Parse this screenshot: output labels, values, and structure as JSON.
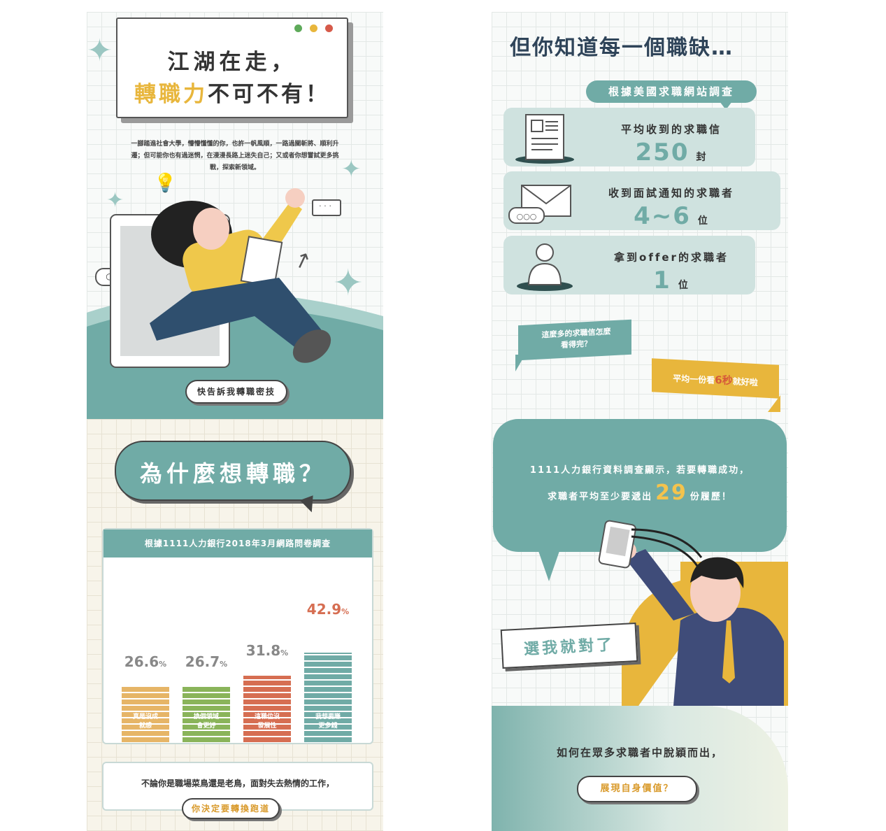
{
  "left_panel": {
    "hero": {
      "title_line1": "江湖在走，",
      "title_highlight": "轉職力",
      "title_rest": "不可不有！",
      "intro": "一腳踏進社會大學，懵懵懂懂的你，也許一帆風順，一路過關斬將、順利升遷；但可能你也有過迷惘，在漫漫長路上迷失自己；又或者你想嘗試更多挑戰，探索新領域。",
      "cta": "快告訴我轉職密技",
      "window_dot_colors": [
        "#5eaa5a",
        "#e8b63c",
        "#d65a4a"
      ]
    },
    "why": {
      "heading": "為什麼想轉職？",
      "survey_title": "根據1111人力銀行2018年3月網路問卷調查"
    },
    "chart_data": {
      "type": "bar",
      "categories": [
        "真是沒成就感",
        "換個領域會更好",
        "這職位沒發展性",
        "我想要賺更多錢"
      ],
      "values": [
        26.6,
        26.7,
        31.8,
        42.9
      ],
      "unit": "%",
      "colors": [
        "#e6b567",
        "#8ab45a",
        "#d66e52",
        "#70aba6"
      ]
    },
    "footer": {
      "text": "不論你是職場菜鳥還是老鳥，面對失去熱情的工作，",
      "cta": "你決定要轉換跑道"
    }
  },
  "right_panel": {
    "heading": "但你知道每一個職缺…",
    "source_tag": "根據美國求職網站調查",
    "stats": [
      {
        "label": "平均收到的求職信",
        "value": "250",
        "unit": "封"
      },
      {
        "label": "收到面試通知的求職者",
        "value": "4~6",
        "unit": "位"
      },
      {
        "label": "拿到offer的求職者",
        "value": "1",
        "unit": "位"
      }
    ],
    "question": "這麼多的求職信怎麼看得完？",
    "answer_prefix": "平均一份看",
    "answer_highlight": "6秒",
    "answer_suffix": "就好啦",
    "bank_line1": "1111人力銀行資料調查顯示，若要轉職成功，",
    "bank_line2_prefix": "求職者平均至少要遞出",
    "bank_number": "29",
    "bank_line2_suffix": "份履歷！",
    "pick_me": "選我就對了",
    "closing": "如何在眾多求職者中脫穎而出，",
    "closing_cta": "展現自身價值？"
  }
}
